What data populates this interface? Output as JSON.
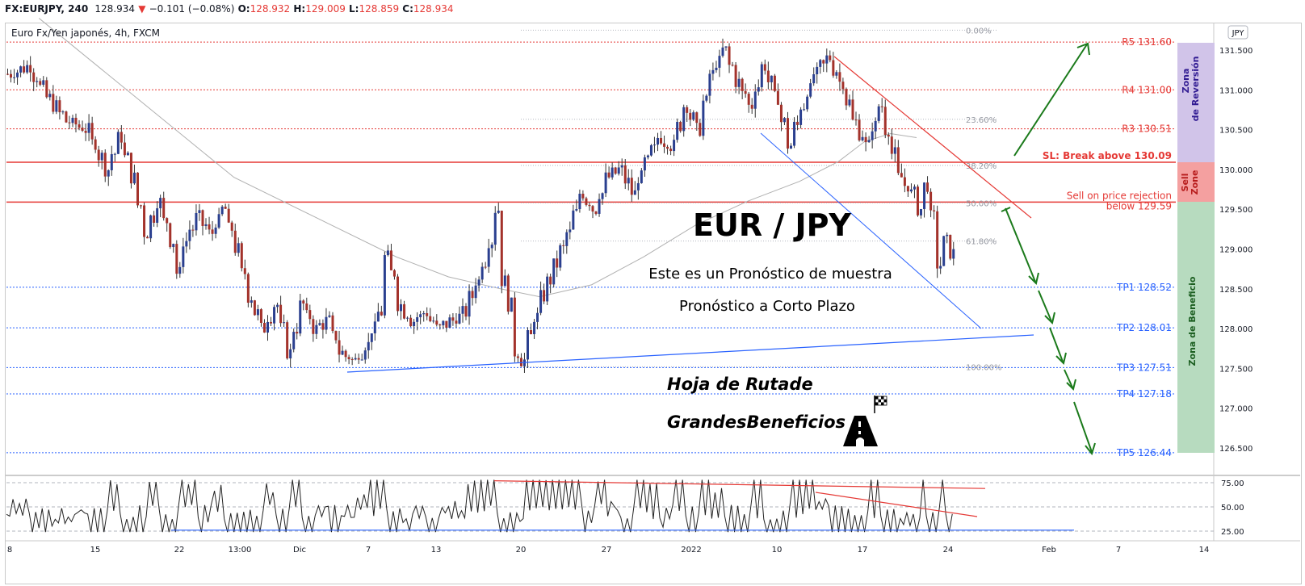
{
  "header": {
    "symbol": "FX:EURJPY, 240",
    "price": "128.934",
    "arrow": "▼",
    "change": "−0.101 (−0.08%)",
    "o_label": "O:",
    "o": "128.932",
    "h_label": "H:",
    "h": "129.009",
    "l_label": "L:",
    "l": "128.859",
    "c_label": "C:",
    "c": "128.934"
  },
  "chart_data": {
    "type": "line",
    "title": "EUR / JPY",
    "subtitle_1": "Este es un Pronóstico de muestra",
    "subtitle_2": "Pronóstico a Corto Plazo",
    "legend": "Euro Fx/Yen japonés, 4h, FXCM",
    "currency": "JPY",
    "ylim": [
      126.3,
      131.75
    ],
    "y_ticks": [
      "131.500",
      "131.000",
      "130.500",
      "130.000",
      "129.500",
      "129.000",
      "128.500",
      "128.000",
      "127.500",
      "127.000",
      "126.500"
    ],
    "x_ticks": [
      "8",
      "15",
      "22",
      "13:00",
      "Dic",
      "7",
      "13",
      "20",
      "27",
      "2022",
      "10",
      "17",
      "24",
      "Feb",
      "7",
      "14"
    ],
    "price_path": [
      [
        0,
        131.2
      ],
      [
        3,
        131.3
      ],
      [
        6,
        130.9
      ],
      [
        9,
        130.6
      ],
      [
        12,
        130.5
      ],
      [
        15,
        130.0
      ],
      [
        17,
        130.4
      ],
      [
        19,
        129.9
      ],
      [
        21,
        129.2
      ],
      [
        23,
        129.6
      ],
      [
        25,
        129.1
      ],
      [
        26,
        128.7
      ],
      [
        27,
        129.1
      ],
      [
        29,
        129.4
      ],
      [
        31,
        129.2
      ],
      [
        33,
        129.5
      ],
      [
        35,
        129.0
      ],
      [
        37,
        128.4
      ],
      [
        39,
        128.0
      ],
      [
        41,
        128.3
      ],
      [
        43,
        127.7
      ],
      [
        45,
        128.3
      ],
      [
        47,
        128.0
      ],
      [
        49,
        128.1
      ],
      [
        51,
        127.7
      ],
      [
        53,
        127.6
      ],
      [
        55,
        127.8
      ],
      [
        57,
        128.2
      ],
      [
        58,
        128.9
      ],
      [
        59,
        128.7
      ],
      [
        60,
        128.3
      ],
      [
        62,
        128.1
      ],
      [
        64,
        128.2
      ],
      [
        66,
        128.0
      ],
      [
        68,
        128.1
      ],
      [
        70,
        128.2
      ],
      [
        72,
        128.6
      ],
      [
        74,
        129.1
      ],
      [
        75,
        129.5
      ],
      [
        76,
        128.6
      ],
      [
        77,
        128.3
      ],
      [
        78,
        127.7
      ],
      [
        79,
        127.6
      ],
      [
        80,
        127.9
      ],
      [
        82,
        128.4
      ],
      [
        84,
        128.8
      ],
      [
        86,
        129.2
      ],
      [
        88,
        129.7
      ],
      [
        90,
        129.5
      ],
      [
        92,
        129.9
      ],
      [
        94,
        130.0
      ],
      [
        96,
        129.7
      ],
      [
        98,
        130.1
      ],
      [
        100,
        130.4
      ],
      [
        102,
        130.3
      ],
      [
        104,
        130.8
      ],
      [
        106,
        130.5
      ],
      [
        108,
        131.2
      ],
      [
        110,
        131.5
      ],
      [
        112,
        131.1
      ],
      [
        114,
        130.8
      ],
      [
        116,
        131.3
      ],
      [
        118,
        130.9
      ],
      [
        120,
        130.3
      ],
      [
        122,
        130.8
      ],
      [
        124,
        131.2
      ],
      [
        126,
        131.4
      ],
      [
        128,
        131.1
      ],
      [
        130,
        130.6
      ],
      [
        132,
        130.3
      ],
      [
        134,
        130.8
      ],
      [
        136,
        130.2
      ],
      [
        137,
        129.9
      ],
      [
        139,
        129.7
      ],
      [
        140,
        129.5
      ],
      [
        141,
        129.8
      ],
      [
        142,
        129.4
      ],
      [
        143,
        128.8
      ],
      [
        144,
        129.1
      ],
      [
        145,
        128.95
      ]
    ],
    "ma_path": [
      [
        5,
        131.9
      ],
      [
        20,
        130.9
      ],
      [
        35,
        129.9
      ],
      [
        50,
        129.3
      ],
      [
        60,
        128.9
      ],
      [
        68,
        128.65
      ],
      [
        76,
        128.5
      ],
      [
        82,
        128.4
      ],
      [
        90,
        128.55
      ],
      [
        98,
        128.9
      ],
      [
        106,
        129.3
      ],
      [
        114,
        129.6
      ],
      [
        122,
        129.85
      ],
      [
        128,
        130.1
      ],
      [
        132,
        130.35
      ],
      [
        136,
        130.45
      ],
      [
        140,
        130.4
      ]
    ],
    "osc_ylim": [
      20,
      80
    ],
    "osc_ticks": [
      "75.00",
      "50.00",
      "25.00"
    ],
    "fib_levels": [
      {
        "label": "0.00%",
        "value": 131.75
      },
      {
        "label": "23.60%",
        "value": 130.63
      },
      {
        "label": "38.20%",
        "value": 130.05
      },
      {
        "label": "50.00%",
        "value": 129.58
      },
      {
        "label": "61.80%",
        "value": 129.1
      },
      {
        "label": "100.00%",
        "value": 127.52
      }
    ],
    "resistance_levels": [
      {
        "label": "R5 131.60",
        "value": 131.6
      },
      {
        "label": "R4 131.00",
        "value": 131.0
      },
      {
        "label": "R3 130.51",
        "value": 130.51
      }
    ],
    "sl_label": "SL: Break above 130.09",
    "sl_value": 130.09,
    "sell_label_1": "Sell on price rejection",
    "sell_label_2": "below 129.59",
    "sell_value": 129.59,
    "tp_levels": [
      {
        "label": "TP1 128.52",
        "value": 128.52
      },
      {
        "label": "TP2 128.01",
        "value": 128.01
      },
      {
        "label": "TP3 127.51",
        "value": 127.51
      },
      {
        "label": "TP4 127.18",
        "value": 127.18
      },
      {
        "label": "TP5 126.44",
        "value": 126.44
      }
    ],
    "zones": {
      "reversal_1": "Zona",
      "reversal_2": "de Reversión",
      "sell_1": "Sell",
      "sell_2": "Zone",
      "profit": "Zona de Beneficio"
    },
    "roadmap_1": "Hoja de Rutade",
    "roadmap_2": "GrandesBeneficios",
    "colors": {
      "up": "#2a3f8f",
      "down": "#a3322b",
      "red": "#e53935",
      "blue": "#2962ff",
      "green": "#1b7a1b",
      "zone_purple": "#d1c4e9",
      "zone_red": "#f4a0a0",
      "zone_green": "#b7dbbf"
    }
  }
}
